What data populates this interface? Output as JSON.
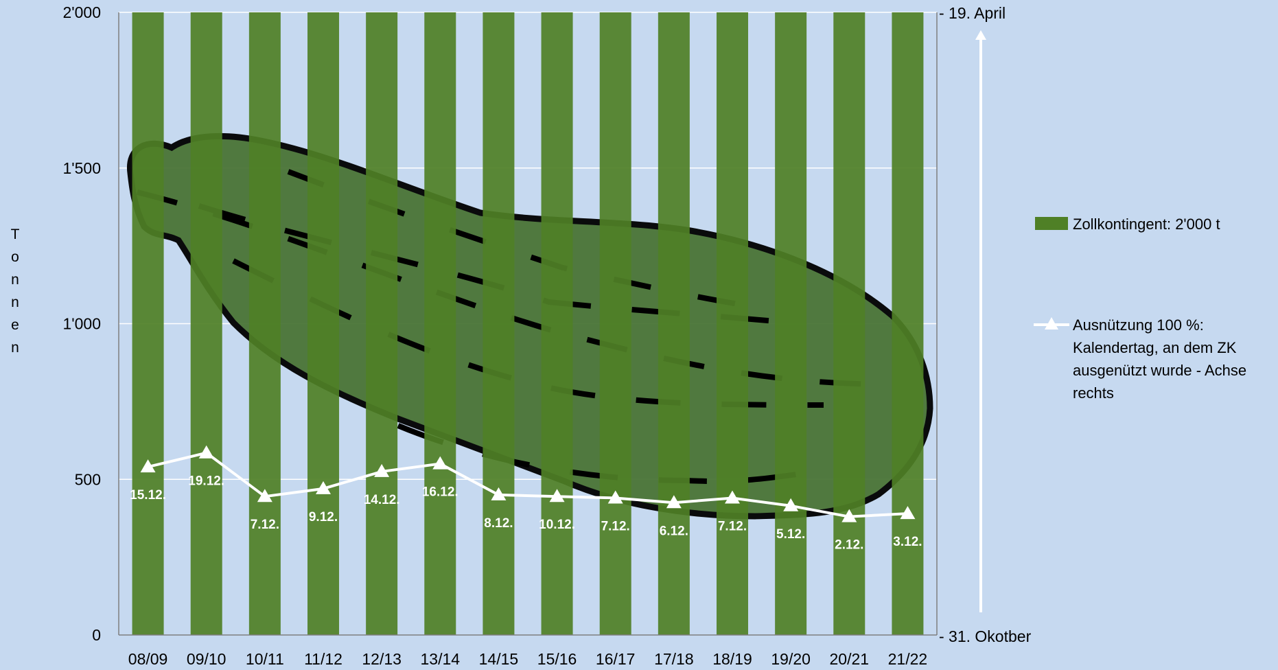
{
  "chart_data": {
    "type": "bar",
    "categories": [
      "08/09",
      "09/10",
      "10/11",
      "11/12",
      "12/13",
      "13/14",
      "14/15",
      "15/16",
      "16/17",
      "17/18",
      "18/19",
      "19/20",
      "20/21",
      "21/22"
    ],
    "series": [
      {
        "name": "Zollkontingent: 2'000 t",
        "type": "bar",
        "color": "#4f8026",
        "values": [
          2000,
          2000,
          2000,
          2000,
          2000,
          2000,
          2000,
          2000,
          2000,
          2000,
          2000,
          2000,
          2000,
          2000
        ]
      },
      {
        "name": "Ausnützung 100 %: Kalendertag, an dem ZK ausgenützt wurde - Achse rechts",
        "legend_lines": [
          "Ausnützung 100 %:",
          "Kalendertag, an dem ZK",
          "ausgenützt wurde - Achse",
          "rechts"
        ],
        "type": "line",
        "marker": "triangle",
        "color": "#ffffff",
        "values": [
          540,
          585,
          445,
          470,
          525,
          550,
          450,
          445,
          440,
          425,
          440,
          415,
          380,
          390
        ],
        "labels": [
          "15.12.",
          "19.12.",
          "7.12.",
          "9.12.",
          "14.12.",
          "16.12.",
          "8.12.",
          "10.12.",
          "7.12.",
          "6.12.",
          "7.12.",
          "5.12.",
          "2.12.",
          "3.12."
        ]
      }
    ],
    "ylabel": "Tonnen",
    "ylim": [
      0,
      2000
    ],
    "yticks": [
      0,
      500,
      1000,
      1500,
      2000
    ],
    "ytick_labels": [
      "0",
      "500",
      "1'000",
      "1'500",
      "2'000"
    ],
    "right_axis_labels": {
      "top": "- 19. April",
      "bottom": "- 31. Okotber"
    },
    "grid": true,
    "legend_position": "right",
    "background_color": "#c6d9f0",
    "decoration": "cucumber-illustration"
  }
}
